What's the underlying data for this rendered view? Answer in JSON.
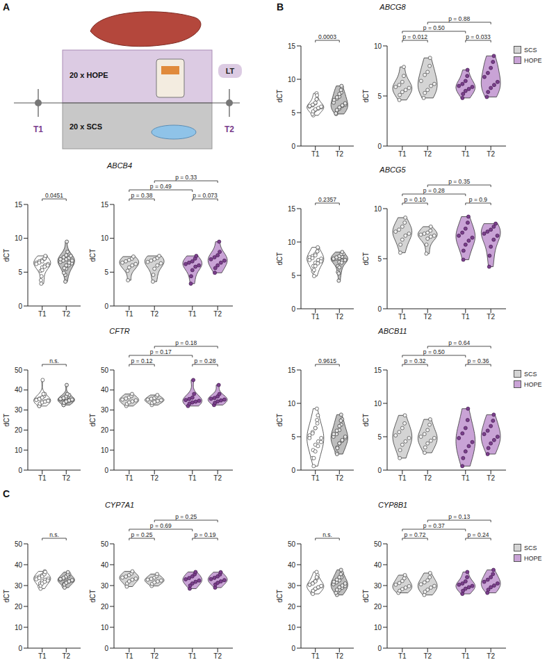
{
  "panel_labels": [
    "A",
    "B",
    "C"
  ],
  "schematic": {
    "top_label": "20 x HOPE",
    "bottom_label": "20 x SCS",
    "transplant": "LT",
    "time_points": [
      "T1",
      "T2"
    ]
  },
  "chart_data": [
    {
      "type": "violin",
      "title": "ABCG8",
      "y_label": "dCT",
      "categories": [
        "T1",
        "T2"
      ],
      "legend": "right",
      "pooled": {
        "ylim": [
          0,
          15
        ],
        "yticks": [
          0,
          5,
          10,
          15
        ],
        "p_value": "0.0003"
      },
      "split": {
        "ylim": [
          0,
          10
        ],
        "yticks": [
          0,
          5,
          10
        ],
        "p_values": [
          "p = 0.012",
          "p = 0.033",
          "p = 0.50",
          "p = 0.88"
        ]
      },
      "series": [
        {
          "name": "SCS",
          "color": "#d4d4d4",
          "values": [
            [
              4.6,
              5.1,
              5.4,
              5.6,
              5.8,
              5.9,
              6.1,
              6.4,
              7.0,
              7.9
            ],
            [
              4.8,
              5.3,
              5.6,
              6.0,
              6.2,
              6.5,
              7.1,
              7.4,
              8.0,
              8.8
            ]
          ]
        },
        {
          "name": "HOPE",
          "color": "#c9a3d6",
          "values": [
            [
              4.8,
              5.2,
              5.5,
              5.7,
              5.9,
              6.0,
              6.2,
              6.5,
              7.0,
              7.6
            ],
            [
              4.9,
              5.4,
              5.8,
              6.1,
              6.4,
              6.9,
              7.3,
              7.8,
              8.4,
              9.0
            ]
          ]
        }
      ]
    },
    {
      "type": "violin",
      "title": "ABCB4",
      "y_label": "dCT",
      "categories": [
        "T1",
        "T2"
      ],
      "pooled": {
        "ylim": [
          0,
          15
        ],
        "yticks": [
          0,
          5,
          10,
          15
        ],
        "p_value": "0.0451"
      },
      "split": {
        "ylim": [
          0,
          15
        ],
        "yticks": [
          0,
          5,
          10,
          15
        ],
        "p_values": [
          "p = 0.38",
          "p = 0.073",
          "p = 0.49",
          "p = 0.33"
        ]
      },
      "series": [
        {
          "name": "SCS",
          "color": "#d4d4d4",
          "values": [
            [
              3.8,
              5.2,
              5.7,
              6.0,
              6.2,
              6.4,
              6.6,
              6.8,
              7.0,
              7.3
            ],
            [
              3.6,
              4.6,
              5.5,
              6.0,
              6.3,
              6.5,
              6.7,
              6.9,
              7.1,
              7.4
            ]
          ]
        },
        {
          "name": "HOPE",
          "color": "#c9a3d6",
          "values": [
            [
              3.3,
              4.4,
              5.3,
              5.8,
              6.0,
              6.2,
              6.4,
              6.6,
              7.0,
              7.4
            ],
            [
              4.9,
              5.6,
              6.0,
              6.4,
              6.7,
              6.9,
              7.2,
              7.5,
              8.0,
              9.5
            ]
          ]
        }
      ]
    },
    {
      "type": "violin",
      "title": "ABCG5",
      "y_label": "dCT",
      "categories": [
        "T1",
        "T2"
      ],
      "pooled": {
        "ylim": [
          0,
          15
        ],
        "yticks": [
          0,
          5,
          10,
          15
        ],
        "p_value": "0.2357"
      },
      "split": {
        "ylim": [
          0,
          10
        ],
        "yticks": [
          0,
          5,
          10
        ],
        "p_values": [
          "p = 0.10",
          "p = 0.9",
          "p = 0.28",
          "p = 0.35"
        ]
      },
      "series": [
        {
          "name": "SCS",
          "color": "#d4d4d4",
          "values": [
            [
              5.6,
              6.4,
              6.9,
              7.3,
              7.5,
              7.7,
              7.9,
              8.2,
              8.6,
              9.1
            ],
            [
              5.5,
              6.4,
              7.0,
              7.2,
              7.3,
              7.4,
              7.5,
              7.6,
              7.8,
              8.2
            ]
          ]
        },
        {
          "name": "HOPE",
          "color": "#c9a3d6",
          "values": [
            [
              4.9,
              5.8,
              6.4,
              6.8,
              7.1,
              7.3,
              7.6,
              8.0,
              8.6,
              9.2
            ],
            [
              4.2,
              5.3,
              6.2,
              6.9,
              7.3,
              7.5,
              7.7,
              7.9,
              8.2,
              8.5
            ]
          ]
        }
      ]
    },
    {
      "type": "violin",
      "title": "CFTR",
      "y_label": "dCT",
      "categories": [
        "T1",
        "T2"
      ],
      "pooled": {
        "ylim": [
          0,
          50
        ],
        "yticks": [
          0,
          10,
          20,
          30,
          40,
          50
        ],
        "p_value": "n.s."
      },
      "split": {
        "ylim": [
          0,
          50
        ],
        "yticks": [
          0,
          10,
          20,
          30,
          40,
          50
        ],
        "p_values": [
          "p = 0.12",
          "p = 0.28",
          "p = 0.17",
          "p = 0.18"
        ]
      },
      "series": [
        {
          "name": "SCS",
          "color": "#d4d4d4",
          "values": [
            [
              32.0,
              33.0,
              33.8,
              34.3,
              34.8,
              35.2,
              35.7,
              36.3,
              37.0,
              38.0
            ],
            [
              32.5,
              33.5,
              34.0,
              34.5,
              34.9,
              35.2,
              35.6,
              36.0,
              36.8,
              37.5
            ]
          ]
        },
        {
          "name": "HOPE",
          "color": "#c9a3d6",
          "values": [
            [
              32.0,
              33.2,
              33.8,
              34.2,
              34.6,
              35.0,
              35.5,
              36.2,
              38.0,
              45.0
            ],
            [
              32.5,
              33.6,
              34.3,
              34.8,
              35.2,
              35.6,
              36.0,
              36.8,
              38.0,
              42.5
            ]
          ]
        }
      ]
    },
    {
      "type": "violin",
      "title": "ABCB11",
      "y_label": "dCT",
      "categories": [
        "T1",
        "T2"
      ],
      "legend": "right",
      "pooled": {
        "ylim": [
          0,
          15
        ],
        "yticks": [
          0,
          5,
          10,
          15
        ],
        "p_value": "0.9615"
      },
      "split": {
        "ylim": [
          0,
          15
        ],
        "yticks": [
          0,
          5,
          10,
          15
        ],
        "p_values": [
          "p = 0.32",
          "p = 0.36",
          "p = 0.50",
          "p = 0.64"
        ]
      },
      "series": [
        {
          "name": "SCS",
          "color": "#d4d4d4",
          "values": [
            [
              1.8,
              3.0,
              3.8,
              4.3,
              4.8,
              5.2,
              5.7,
              6.3,
              7.0,
              8.2
            ],
            [
              2.6,
              3.4,
              4.0,
              4.4,
              4.8,
              5.0,
              5.4,
              6.0,
              6.8,
              7.6
            ]
          ]
        },
        {
          "name": "HOPE",
          "color": "#c9a3d6",
          "values": [
            [
              0.6,
              1.8,
              2.8,
              3.6,
              4.2,
              4.8,
              5.5,
              6.3,
              7.5,
              9.2
            ],
            [
              2.4,
              3.3,
              4.0,
              4.5,
              5.0,
              5.4,
              5.9,
              6.6,
              7.4,
              8.3
            ]
          ]
        }
      ]
    },
    {
      "type": "violin",
      "title": "CYP7A1",
      "y_label": "dCT",
      "categories": [
        "T1",
        "T2"
      ],
      "pooled": {
        "ylim": [
          0,
          50
        ],
        "yticks": [
          0,
          10,
          20,
          30,
          40,
          50
        ],
        "p_value": "n.s."
      },
      "split": {
        "ylim": [
          0,
          50
        ],
        "yticks": [
          0,
          10,
          20,
          30,
          40,
          50
        ],
        "p_values": [
          "p = 0.25",
          "p = 0.19",
          "p = 0.69",
          "p = 0.25"
        ]
      },
      "series": [
        {
          "name": "SCS",
          "color": "#d4d4d4",
          "values": [
            [
              29.5,
              31.0,
              32.0,
              32.8,
              33.3,
              33.8,
              34.3,
              35.0,
              35.8,
              36.8
            ],
            [
              29.8,
              30.8,
              31.5,
              32.0,
              32.4,
              32.8,
              33.2,
              33.8,
              34.5,
              35.5
            ]
          ]
        },
        {
          "name": "HOPE",
          "color": "#c9a3d6",
          "values": [
            [
              28.5,
              30.0,
              31.0,
              31.8,
              32.4,
              33.0,
              33.6,
              34.4,
              35.4,
              36.5
            ],
            [
              29.0,
              30.5,
              31.3,
              32.0,
              32.6,
              33.1,
              33.7,
              34.4,
              35.3,
              36.4
            ]
          ]
        }
      ]
    },
    {
      "type": "violin",
      "title": "CYP8B1",
      "y_label": "dCT",
      "categories": [
        "T1",
        "T2"
      ],
      "legend": "right",
      "pooled": {
        "ylim": [
          0,
          50
        ],
        "yticks": [
          0,
          10,
          20,
          30,
          40,
          50
        ],
        "p_value": "n.s."
      },
      "split": {
        "ylim": [
          0,
          50
        ],
        "yticks": [
          0,
          10,
          20,
          30,
          40,
          50
        ],
        "p_values": [
          "p = 0.72",
          "p = 0.24",
          "p = 0.37",
          "p = 0.13"
        ]
      },
      "series": [
        {
          "name": "SCS",
          "color": "#d4d4d4",
          "values": [
            [
              26.5,
              27.5,
              28.3,
              29.0,
              29.7,
              30.4,
              31.2,
              32.2,
              33.5,
              35.0
            ],
            [
              25.5,
              27.0,
              28.0,
              29.0,
              29.8,
              30.6,
              31.5,
              32.5,
              34.0,
              36.0
            ]
          ]
        },
        {
          "name": "HOPE",
          "color": "#c9a3d6",
          "values": [
            [
              26.0,
              27.5,
              28.5,
              29.2,
              29.8,
              30.4,
              31.0,
              32.0,
              34.0,
              36.5
            ],
            [
              26.5,
              28.0,
              29.2,
              30.0,
              31.0,
              31.8,
              32.8,
              34.0,
              35.5,
              37.5
            ]
          ]
        }
      ]
    }
  ]
}
